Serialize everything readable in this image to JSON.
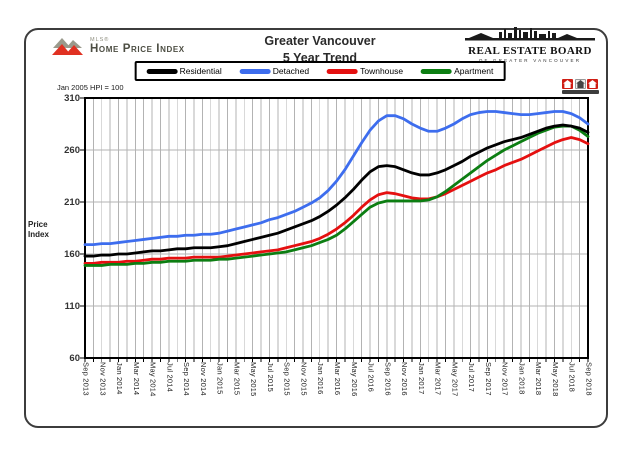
{
  "header": {
    "mls_logo": {
      "mls_label": "MLS®",
      "title": "Home Price Index"
    },
    "title_line1": "Greater Vancouver",
    "title_line2": "5 Year Trend",
    "board_logo": {
      "name": "REAL ESTATE BOARD",
      "subtitle": "OF GREATER VANCOUVER"
    }
  },
  "axis_note": "Jan 2005 HPI = 100",
  "y_axis_label_line1": "Price",
  "y_axis_label_line2": "Index",
  "colors": {
    "grid": "#B3B3B3",
    "frame": "#000000",
    "logo_red": "#E03122",
    "logo_gray": "#9A9A8C"
  },
  "chart_data": {
    "type": "line",
    "title": "Greater Vancouver 5 Year Trend",
    "subtitle": "MLS Home Price Index, Jan 2005 HPI = 100",
    "ylabel": "Price Index",
    "ylim": [
      60,
      310
    ],
    "y_ticks": [
      60,
      110,
      160,
      210,
      260,
      310
    ],
    "months_total": 61,
    "x_start": "Sep 2013",
    "x_end": "Sep 2018",
    "grid": "vertical line every month, horizontal line every 50 index points",
    "legend_position": "top-center",
    "x_tick_labels": [
      "Sep 2013",
      "Nov 2013",
      "Jan 2014",
      "Mar 2014",
      "May 2014",
      "Jul 2014",
      "Sep 2014",
      "Nov 2014",
      "Jan 2015",
      "Mar 2015",
      "May 2015",
      "Jul 2015",
      "Sep 2015",
      "Nov 2015",
      "Jan 2016",
      "Mar 2016",
      "May 2016",
      "Jul 2016",
      "Sep 2016",
      "Nov 2016",
      "Jan 2017",
      "Mar 2017",
      "May 2017",
      "Jul 2017",
      "Sep 2017",
      "Nov 2017",
      "Jan 2018",
      "Mar 2018",
      "May 2018",
      "Jul 2018",
      "Sep 2018"
    ],
    "series": [
      {
        "name": "Residential",
        "color": "#000000",
        "values": [
          158,
          158,
          159,
          159,
          160,
          160,
          161,
          162,
          163,
          163,
          164,
          165,
          165,
          166,
          166,
          166,
          167,
          168,
          170,
          172,
          174,
          176,
          178,
          180,
          183,
          186,
          189,
          192,
          196,
          201,
          207,
          214,
          222,
          231,
          239,
          244,
          245,
          244,
          241,
          238,
          236,
          236,
          238,
          241,
          245,
          249,
          254,
          258,
          262,
          265,
          268,
          270,
          272,
          275,
          278,
          281,
          283,
          284,
          283,
          281,
          277
        ]
      },
      {
        "name": "Detached",
        "color": "#3D6DEE",
        "values": [
          169,
          169,
          170,
          170,
          171,
          172,
          173,
          174,
          175,
          176,
          177,
          177,
          178,
          178,
          179,
          179,
          180,
          182,
          184,
          186,
          188,
          190,
          193,
          195,
          198,
          201,
          205,
          209,
          214,
          221,
          230,
          241,
          254,
          267,
          279,
          288,
          293,
          293,
          290,
          285,
          281,
          278,
          278,
          281,
          285,
          290,
          294,
          296,
          297,
          297,
          296,
          295,
          294,
          294,
          295,
          296,
          297,
          297,
          295,
          291,
          285
        ]
      },
      {
        "name": "Townhouse",
        "color": "#E51010",
        "values": [
          151,
          151,
          152,
          152,
          152,
          153,
          153,
          154,
          155,
          155,
          156,
          156,
          156,
          157,
          157,
          157,
          157,
          158,
          159,
          160,
          161,
          162,
          163,
          164,
          166,
          168,
          170,
          172,
          175,
          179,
          184,
          190,
          197,
          205,
          212,
          217,
          219,
          218,
          216,
          214,
          213,
          213,
          215,
          218,
          222,
          226,
          230,
          234,
          238,
          241,
          245,
          248,
          251,
          255,
          259,
          263,
          267,
          270,
          272,
          270,
          266
        ]
      },
      {
        "name": "Apartment",
        "color": "#0C7E12",
        "values": [
          149,
          149,
          149,
          150,
          150,
          150,
          151,
          151,
          152,
          152,
          153,
          153,
          153,
          154,
          154,
          154,
          155,
          155,
          156,
          157,
          158,
          159,
          160,
          161,
          162,
          164,
          166,
          168,
          171,
          174,
          178,
          184,
          191,
          198,
          205,
          209,
          211,
          211,
          211,
          211,
          211,
          212,
          215,
          220,
          226,
          232,
          238,
          244,
          250,
          255,
          260,
          264,
          268,
          272,
          276,
          279,
          282,
          283,
          283,
          279,
          273
        ]
      }
    ],
    "draw_order": [
      "Detached",
      "Townhouse",
      "Apartment",
      "Residential"
    ]
  }
}
